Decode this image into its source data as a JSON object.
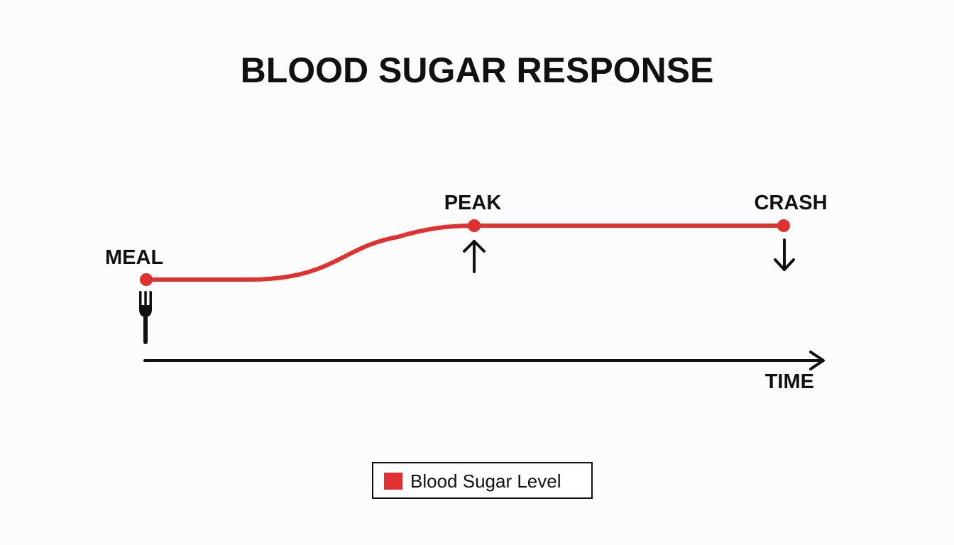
{
  "title": "BLOOD SUGAR RESPONSE",
  "colors": {
    "curve": "#e03030",
    "ink": "#111111",
    "background": "#fcfcfc"
  },
  "events": {
    "meal": {
      "label": "MEAL",
      "icon": "fork-icon"
    },
    "peak": {
      "label": "PEAK",
      "icon": "arrow-up-icon"
    },
    "crash": {
      "label": "CRASH",
      "icon": "arrow-down-icon"
    }
  },
  "axis": {
    "x_label": "TIME"
  },
  "legend": {
    "items": [
      {
        "label": "Blood Sugar Level",
        "color": "#e03030"
      }
    ]
  }
}
